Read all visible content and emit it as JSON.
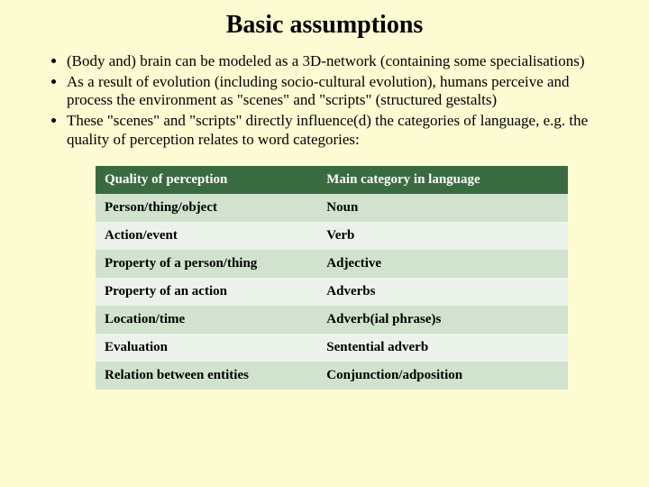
{
  "slide": {
    "background_color": "#fcfbd2",
    "text_color": "#000000",
    "title": "Basic assumptions",
    "title_fontsize": 28,
    "bullet_fontsize": 17,
    "bullets": [
      "(Body and) brain can be modeled as a 3D-network (containing some specialisations)",
      "As a result of evolution (including socio-cultural evolution), humans perceive and process the environment as \"scenes\" and \"scripts\" (structured gestalts)",
      "These \"scenes\" and \"scripts\" directly influence(d) the categories of language, e.g. the quality of perception relates to word categories:"
    ],
    "table": {
      "header_bg": "#3a6b40",
      "header_text_color": "#ffffff",
      "row_alt_bg_1": "#d1e3cf",
      "row_alt_bg_2": "#eaf2e9",
      "cell_fontsize": 15,
      "columns": [
        "Quality of perception",
        "Main category in language"
      ],
      "rows": [
        [
          "Person/thing/object",
          "Noun"
        ],
        [
          "Action/event",
          "Verb"
        ],
        [
          "Property of a person/thing",
          "Adjective"
        ],
        [
          "Property of an action",
          "Adverbs"
        ],
        [
          "Location/time",
          "Adverb(ial phrase)s"
        ],
        [
          "Evaluation",
          "Sentential adverb"
        ],
        [
          "Relation between entities",
          "Conjunction/adposition"
        ]
      ]
    }
  }
}
